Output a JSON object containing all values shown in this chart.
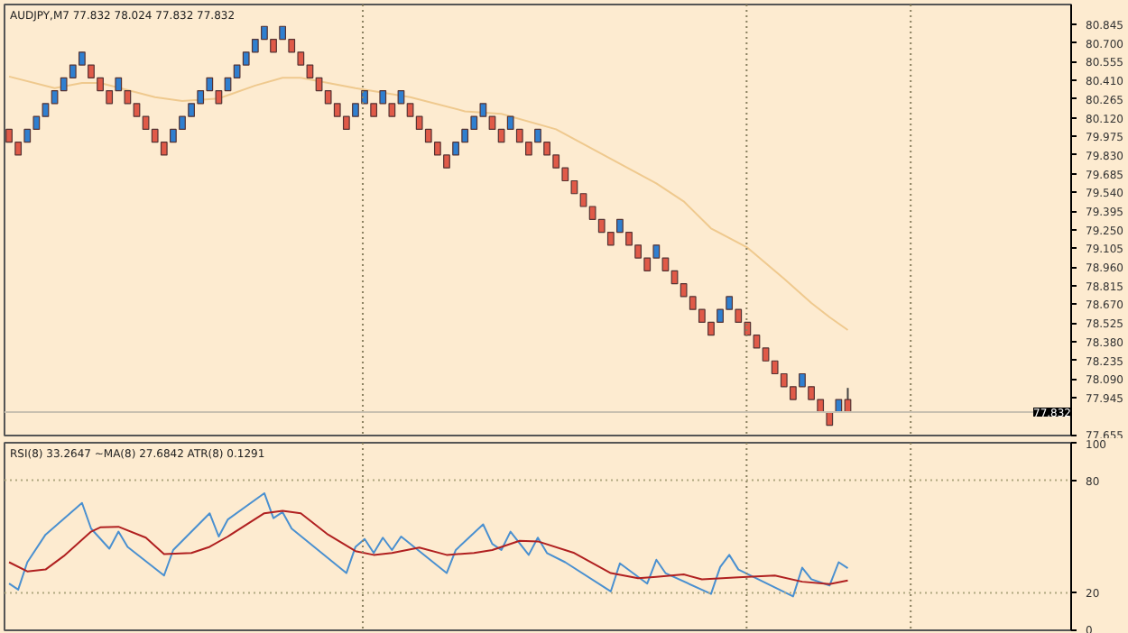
{
  "chart_data": [
    {
      "type": "candlestick",
      "title": "AUDJPY,M7 77.832 78.024 77.832 77.832",
      "categories": [
        null,
        null,
        null,
        null,
        null,
        null,
        null,
        null,
        null,
        null,
        null,
        null,
        null,
        null,
        null,
        null,
        null,
        null,
        null,
        null,
        null,
        null,
        null,
        null,
        null,
        null,
        null,
        null,
        null,
        null,
        null,
        null,
        null,
        null,
        null,
        null,
        null,
        null,
        null,
        null,
        null,
        null,
        null,
        null,
        null,
        null,
        null,
        null,
        null,
        null,
        null,
        null,
        null,
        null,
        null,
        null,
        null,
        null,
        null,
        null,
        null,
        null,
        null,
        null,
        null,
        null,
        null,
        null,
        null,
        null,
        null,
        null,
        null,
        null,
        null,
        null,
        null,
        null,
        null,
        null,
        null,
        null,
        null,
        null,
        null,
        null,
        null,
        null,
        null,
        null,
        null,
        null,
        null,
        null,
        null,
        null,
        null,
        null,
        null,
        null,
        null,
        null,
        null,
        null,
        null,
        null,
        null,
        null,
        null,
        null,
        null,
        null,
        null,
        null,
        null,
        null,
        null
      ],
      "ohlc": [
        [
          80.03,
          80.03,
          79.93,
          79.93
        ],
        [
          79.93,
          79.93,
          79.83,
          79.83
        ],
        [
          79.93,
          80.03,
          79.93,
          80.03
        ],
        [
          80.03,
          80.13,
          80.03,
          80.13
        ],
        [
          80.13,
          80.23,
          80.13,
          80.23
        ],
        [
          80.23,
          80.33,
          80.23,
          80.33
        ],
        [
          80.33,
          80.43,
          80.33,
          80.43
        ],
        [
          80.43,
          80.53,
          80.43,
          80.53
        ],
        [
          80.53,
          80.63,
          80.53,
          80.63
        ],
        [
          80.53,
          80.53,
          80.43,
          80.43
        ],
        [
          80.43,
          80.43,
          80.33,
          80.33
        ],
        [
          80.33,
          80.33,
          80.23,
          80.23
        ],
        [
          80.33,
          80.43,
          80.33,
          80.43
        ],
        [
          80.33,
          80.33,
          80.23,
          80.23
        ],
        [
          80.23,
          80.23,
          80.13,
          80.13
        ],
        [
          80.13,
          80.13,
          80.03,
          80.03
        ],
        [
          80.03,
          80.03,
          79.93,
          79.93
        ],
        [
          79.93,
          79.93,
          79.83,
          79.83
        ],
        [
          79.93,
          80.03,
          79.93,
          80.03
        ],
        [
          80.03,
          80.13,
          80.03,
          80.13
        ],
        [
          80.13,
          80.23,
          80.13,
          80.23
        ],
        [
          80.23,
          80.33,
          80.23,
          80.33
        ],
        [
          80.33,
          80.43,
          80.33,
          80.43
        ],
        [
          80.33,
          80.33,
          80.23,
          80.23
        ],
        [
          80.33,
          80.43,
          80.33,
          80.43
        ],
        [
          80.43,
          80.53,
          80.43,
          80.53
        ],
        [
          80.53,
          80.63,
          80.53,
          80.63
        ],
        [
          80.63,
          80.73,
          80.63,
          80.73
        ],
        [
          80.73,
          80.83,
          80.73,
          80.83
        ],
        [
          80.73,
          80.73,
          80.63,
          80.63
        ],
        [
          80.73,
          80.83,
          80.73,
          80.83
        ],
        [
          80.73,
          80.73,
          80.63,
          80.63
        ],
        [
          80.63,
          80.63,
          80.53,
          80.53
        ],
        [
          80.53,
          80.53,
          80.43,
          80.43
        ],
        [
          80.43,
          80.43,
          80.33,
          80.33
        ],
        [
          80.33,
          80.33,
          80.23,
          80.23
        ],
        [
          80.23,
          80.23,
          80.13,
          80.13
        ],
        [
          80.13,
          80.13,
          80.03,
          80.03
        ],
        [
          80.13,
          80.23,
          80.13,
          80.23
        ],
        [
          80.23,
          80.33,
          80.23,
          80.33
        ],
        [
          80.23,
          80.23,
          80.13,
          80.13
        ],
        [
          80.23,
          80.33,
          80.23,
          80.33
        ],
        [
          80.23,
          80.23,
          80.13,
          80.13
        ],
        [
          80.23,
          80.33,
          80.23,
          80.33
        ],
        [
          80.23,
          80.23,
          80.13,
          80.13
        ],
        [
          80.13,
          80.13,
          80.03,
          80.03
        ],
        [
          80.03,
          80.03,
          79.93,
          79.93
        ],
        [
          79.93,
          79.93,
          79.83,
          79.83
        ],
        [
          79.83,
          79.83,
          79.73,
          79.73
        ],
        [
          79.83,
          79.93,
          79.83,
          79.93
        ],
        [
          79.93,
          80.03,
          79.93,
          80.03
        ],
        [
          80.03,
          80.13,
          80.03,
          80.13
        ],
        [
          80.13,
          80.23,
          80.13,
          80.23
        ],
        [
          80.13,
          80.13,
          80.03,
          80.03
        ],
        [
          80.03,
          80.03,
          79.93,
          79.93
        ],
        [
          80.03,
          80.13,
          80.03,
          80.13
        ],
        [
          80.03,
          80.03,
          79.93,
          79.93
        ],
        [
          79.93,
          79.93,
          79.83,
          79.83
        ],
        [
          79.93,
          80.03,
          79.93,
          80.03
        ],
        [
          79.93,
          79.93,
          79.83,
          79.83
        ],
        [
          79.83,
          79.83,
          79.73,
          79.73
        ],
        [
          79.73,
          79.73,
          79.63,
          79.63
        ],
        [
          79.63,
          79.63,
          79.53,
          79.53
        ],
        [
          79.53,
          79.53,
          79.43,
          79.43
        ],
        [
          79.43,
          79.43,
          79.33,
          79.33
        ],
        [
          79.33,
          79.33,
          79.23,
          79.23
        ],
        [
          79.23,
          79.23,
          79.13,
          79.13
        ],
        [
          79.23,
          79.33,
          79.23,
          79.33
        ],
        [
          79.23,
          79.23,
          79.13,
          79.13
        ],
        [
          79.13,
          79.13,
          79.03,
          79.03
        ],
        [
          79.03,
          79.03,
          78.93,
          78.93
        ],
        [
          79.03,
          79.13,
          79.03,
          79.13
        ],
        [
          79.03,
          79.03,
          78.93,
          78.93
        ],
        [
          78.93,
          78.93,
          78.83,
          78.83
        ],
        [
          78.83,
          78.83,
          78.73,
          78.73
        ],
        [
          78.73,
          78.73,
          78.63,
          78.63
        ],
        [
          78.63,
          78.63,
          78.53,
          78.53
        ],
        [
          78.53,
          78.53,
          78.43,
          78.43
        ],
        [
          78.53,
          78.63,
          78.53,
          78.63
        ],
        [
          78.63,
          78.73,
          78.63,
          78.73
        ],
        [
          78.63,
          78.63,
          78.53,
          78.53
        ],
        [
          78.53,
          78.53,
          78.43,
          78.43
        ],
        [
          78.43,
          78.43,
          78.33,
          78.33
        ],
        [
          78.33,
          78.33,
          78.23,
          78.23
        ],
        [
          78.23,
          78.23,
          78.13,
          78.13
        ],
        [
          78.13,
          78.13,
          78.03,
          78.03
        ],
        [
          78.03,
          78.03,
          77.93,
          77.93
        ],
        [
          78.03,
          78.13,
          78.03,
          78.13
        ],
        [
          78.03,
          78.03,
          77.93,
          77.93
        ],
        [
          77.93,
          77.93,
          77.83,
          77.83
        ],
        [
          77.83,
          77.83,
          77.73,
          77.73
        ],
        [
          77.83,
          77.93,
          77.83,
          77.93
        ],
        [
          77.93,
          78.02,
          77.83,
          77.83
        ],
        null,
        null,
        null,
        null,
        null,
        null,
        null,
        null,
        null,
        null,
        null,
        null,
        null,
        null,
        null,
        null,
        null,
        null,
        null,
        null,
        null,
        null,
        null,
        null
      ],
      "colors": [
        "#e05a48",
        "#e05a48",
        "#2f7fd0",
        "#2f7fd0",
        "#2f7fd0",
        "#2f7fd0",
        "#2f7fd0",
        "#2f7fd0",
        "#2f7fd0",
        "#e05a48",
        "#e05a48",
        "#e05a48",
        "#2f7fd0",
        "#e05a48",
        "#e05a48",
        "#e05a48",
        "#e05a48",
        "#e05a48",
        "#2f7fd0",
        "#2f7fd0",
        "#2f7fd0",
        "#2f7fd0",
        "#2f7fd0",
        "#e05a48",
        "#2f7fd0",
        "#2f7fd0",
        "#2f7fd0",
        "#2f7fd0",
        "#2f7fd0",
        "#e05a48",
        "#2f7fd0",
        "#e05a48",
        "#e05a48",
        "#e05a48",
        "#e05a48",
        "#e05a48",
        "#e05a48",
        "#e05a48",
        "#2f7fd0",
        "#2f7fd0",
        "#e05a48",
        "#2f7fd0",
        "#e05a48",
        "#2f7fd0",
        "#e05a48",
        "#e05a48",
        "#e05a48",
        "#e05a48",
        "#e05a48",
        "#2f7fd0",
        "#2f7fd0",
        "#2f7fd0",
        "#2f7fd0",
        "#e05a48",
        "#e05a48",
        "#2f7fd0",
        "#e05a48",
        "#e05a48",
        "#2f7fd0",
        "#e05a48",
        "#e05a48",
        "#e05a48",
        "#e05a48",
        "#e05a48",
        "#e05a48",
        "#e05a48",
        "#e05a48",
        "#2f7fd0",
        "#e05a48",
        "#e05a48",
        "#e05a48",
        "#2f7fd0",
        "#e05a48",
        "#e05a48",
        "#e05a48",
        "#e05a48",
        "#e05a48",
        "#e05a48",
        "#2f7fd0",
        "#2f7fd0",
        "#e05a48",
        "#e05a48",
        "#e05a48",
        "#e05a48",
        "#e05a48",
        "#e05a48",
        "#e05a48",
        "#2f7fd0",
        "#e05a48",
        "#e05a48",
        "#e05a48",
        "#2f7fd0",
        "#e05a48",
        null,
        null,
        null,
        null,
        null,
        null,
        null,
        null,
        null,
        null,
        null,
        null,
        null,
        null,
        null,
        null,
        null,
        null,
        null,
        null,
        null,
        null,
        null,
        null
      ],
      "series": [
        {
          "type": "line",
          "color": "#efc98e",
          "values": [
            80.44,
            null,
            null,
            null,
            null,
            80.35,
            null,
            null,
            80.39,
            null,
            80.39,
            null,
            null,
            null,
            null,
            null,
            80.28,
            null,
            null,
            80.25,
            null,
            null,
            null,
            80.27,
            null,
            null,
            null,
            80.37,
            null,
            null,
            80.43,
            null,
            80.43,
            null,
            null,
            null,
            null,
            null,
            80.35,
            null,
            null,
            null,
            null,
            null,
            80.28,
            null,
            null,
            null,
            null,
            null,
            80.17,
            null,
            null,
            null,
            80.15,
            null,
            null,
            null,
            null,
            null,
            80.03,
            null,
            null,
            null,
            null,
            null,
            79.8,
            null,
            null,
            null,
            null,
            79.61,
            null,
            null,
            79.47,
            null,
            null,
            79.26,
            null,
            null,
            null,
            79.11,
            null,
            null,
            null,
            78.87,
            null,
            null,
            78.68,
            null,
            78.57,
            null,
            78.47,
            null,
            null,
            null,
            null,
            null,
            null,
            null,
            null,
            null,
            null,
            null,
            null,
            null,
            null,
            null,
            null,
            null,
            null,
            null,
            null,
            null,
            null,
            null,
            null
          ]
        }
      ],
      "ylim": [
        77.65,
        81.0
      ],
      "yticks": [
        {
          "value": 80.845,
          "label": "80.845"
        },
        {
          "value": 80.7,
          "label": "80.700"
        },
        {
          "value": 80.555,
          "label": "80.555"
        },
        {
          "value": 80.41,
          "label": "80.410"
        },
        {
          "value": 80.265,
          "label": "80.265"
        },
        {
          "value": 80.12,
          "label": "80.120"
        },
        {
          "value": 79.975,
          "label": "79.975"
        },
        {
          "value": 79.83,
          "label": "79.830"
        },
        {
          "value": 79.685,
          "label": "79.685"
        },
        {
          "value": 79.54,
          "label": "79.540"
        },
        {
          "value": 79.395,
          "label": "79.395"
        },
        {
          "value": 79.25,
          "label": "79.250"
        },
        {
          "value": 79.105,
          "label": "79.105"
        },
        {
          "value": 78.96,
          "label": "78.960"
        },
        {
          "value": 78.815,
          "label": "78.815"
        },
        {
          "value": 78.67,
          "label": "78.670"
        },
        {
          "value": 78.525,
          "label": "78.525"
        },
        {
          "value": 78.38,
          "label": "78.380"
        },
        {
          "value": 78.235,
          "label": "78.235"
        },
        {
          "value": 78.09,
          "label": "78.090"
        },
        {
          "value": 77.945,
          "label": "77.945"
        },
        {
          "value": 77.655,
          "label": "77.655"
        }
      ],
      "tick_labels": "y",
      "ref_lines": [
        {
          "axis": "y",
          "value": 77.832,
          "label": "77.832",
          "color": "#c8c0b0",
          "line_style": "solid"
        }
      ]
    },
    {
      "type": "line",
      "title": "RSI(8) 33.2647 ~MA(8) 27.6842 ATR(8) 0.1291",
      "categories": [
        null,
        null,
        null,
        null,
        null,
        null,
        null,
        null,
        null,
        null,
        null,
        null,
        null,
        null,
        null,
        null,
        null,
        null,
        null,
        null,
        null,
        null,
        null,
        null,
        null,
        null,
        null,
        null,
        null,
        null,
        null,
        null,
        null,
        null,
        null,
        null,
        null,
        null,
        null,
        null,
        null,
        null,
        null,
        null,
        null,
        null,
        null,
        null,
        null,
        null,
        null,
        null,
        null,
        null,
        null,
        null,
        null,
        null,
        null,
        null,
        null,
        null,
        null,
        null,
        null,
        null,
        null,
        null,
        null,
        null,
        null,
        null,
        null,
        null,
        null,
        null,
        null,
        null,
        null,
        null,
        null,
        null,
        null,
        null,
        null,
        null,
        null,
        null,
        null,
        null,
        null,
        null,
        null,
        null,
        null,
        null,
        null,
        null,
        null,
        null,
        null,
        null,
        null,
        null,
        null,
        null,
        null,
        null,
        null,
        null,
        null,
        null,
        null,
        null,
        null,
        null,
        null
      ],
      "series": [
        {
          "color": "#4a90d0",
          "values": [
            24.9,
            21.7,
            36.3,
            null,
            51.0,
            null,
            null,
            null,
            67.9,
            54.2,
            null,
            43.5,
            52.6,
            44.5,
            null,
            null,
            null,
            29.2,
            42.8,
            null,
            null,
            null,
            62.4,
            50.0,
            59.1,
            null,
            null,
            null,
            73.1,
            59.8,
            63.0,
            54.2,
            null,
            null,
            null,
            null,
            null,
            30.5,
            44.5,
            48.7,
            41.2,
            49.4,
            42.8,
            50.0,
            null,
            null,
            null,
            null,
            30.5,
            42.8,
            null,
            null,
            56.5,
            46.1,
            42.8,
            52.6,
            null,
            40.2,
            49.4,
            41.2,
            null,
            36.3,
            null,
            null,
            null,
            null,
            20.7,
            35.7,
            null,
            null,
            24.9,
            37.6,
            30.5,
            null,
            null,
            null,
            null,
            19.4,
            33.7,
            40.2,
            32.4,
            null,
            null,
            null,
            null,
            null,
            18.1,
            33.4,
            27.2,
            null,
            23.9,
            36.3,
            33.1,
            null,
            null,
            null,
            null,
            null,
            null,
            null,
            null,
            null,
            null,
            null,
            null,
            null,
            null,
            null,
            null,
            null,
            null,
            null,
            null,
            null,
            null,
            null,
            null
          ]
        },
        {
          "color": "#b02020",
          "values": [
            36.3,
            null,
            31.4,
            null,
            32.4,
            null,
            39.6,
            null,
            null,
            52.6,
            54.9,
            null,
            55.2,
            null,
            null,
            49.4,
            null,
            40.6,
            null,
            null,
            41.2,
            null,
            44.5,
            null,
            50.0,
            null,
            null,
            null,
            62.4,
            null,
            63.7,
            null,
            62.4,
            null,
            null,
            51.0,
            null,
            null,
            42.2,
            null,
            40.2,
            null,
            41.2,
            null,
            null,
            44.1,
            null,
            null,
            40.2,
            null,
            null,
            41.2,
            null,
            42.8,
            null,
            null,
            47.7,
            null,
            47.4,
            null,
            null,
            null,
            41.2,
            null,
            null,
            null,
            30.5,
            null,
            null,
            27.8,
            null,
            28.5,
            null,
            null,
            29.8,
            null,
            27.2,
            null,
            null,
            null,
            28.2,
            null,
            null,
            null,
            29.2,
            null,
            null,
            25.9,
            null,
            null,
            24.6,
            null,
            26.6,
            null,
            null,
            null,
            null,
            null,
            null,
            null,
            null,
            null,
            null,
            null,
            null,
            null,
            null,
            null,
            null,
            null,
            null,
            null,
            null,
            null,
            null,
            null,
            null
          ]
        }
      ],
      "ylim": [
        0,
        100
      ],
      "yticks": [
        0,
        20,
        80,
        100
      ],
      "tick_labels": "y",
      "ref_lines": [
        {
          "axis": "y",
          "value": 80,
          "label": null,
          "color": "#b0a880",
          "line_style": "dotted"
        },
        {
          "axis": "y",
          "value": 20,
          "label": null,
          "color": "#b0a880",
          "line_style": "dotted"
        }
      ]
    }
  ]
}
